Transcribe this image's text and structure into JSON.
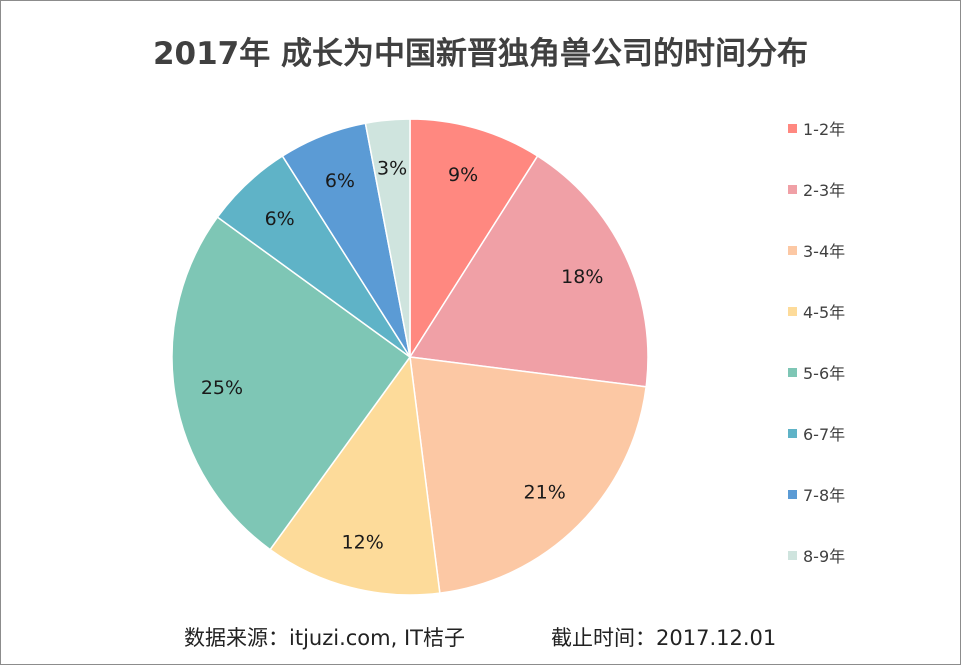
{
  "chart_data": {
    "type": "pie",
    "title": "2017年 成长为中国新晋独角兽公司的时间分布",
    "categories": [
      "1-2年",
      "2-3年",
      "3-4年",
      "4-5年",
      "5-6年",
      "6-7年",
      "7-8年",
      "8-9年"
    ],
    "values": [
      9,
      18,
      21,
      12,
      25,
      6,
      6,
      3
    ],
    "labels": [
      "9%",
      "18%",
      "21%",
      "12%",
      "25%",
      "6%",
      "6%",
      "3%"
    ],
    "colors": [
      "#FF8880",
      "#F0A0A6",
      "#FCC8A4",
      "#FDDB9A",
      "#7EC6B5",
      "#5FB3C7",
      "#5B9BD5",
      "#CFE4DE"
    ],
    "legend_position": "right"
  },
  "footer": {
    "source": "数据来源：itjuzi.com, IT桔子",
    "cutoff": "截止时间：2017.12.01"
  }
}
